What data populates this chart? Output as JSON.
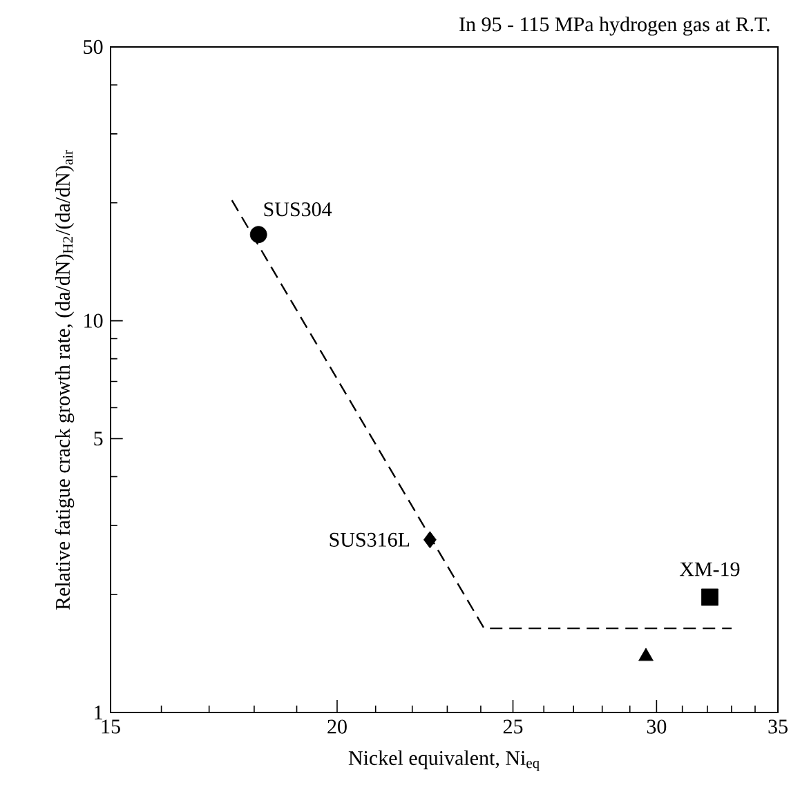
{
  "chart_data": {
    "type": "scatter",
    "title": "In 95 - 115 MPa hydrogen gas at R.T.",
    "xlabel": "Nickel equivalent, Ni$_{eq}$",
    "ylabel": "Relative fatigue crack growth rate, (da/dN)$_{H2}$/(da/dN)$_{air}$",
    "log": "xy",
    "xlim": [
      15,
      35
    ],
    "ylim": [
      1,
      50
    ],
    "xticks": [
      15,
      20,
      25,
      30,
      35
    ],
    "yticks": [
      1,
      5,
      10,
      50
    ],
    "series": [
      {
        "name": "SUS304",
        "color": "#000000",
        "marker": "circle",
        "x": [
          18.1
        ],
        "values": [
          16.6
        ]
      },
      {
        "name": "SUS316L",
        "color": "#000000",
        "marker": "diamond",
        "x": [
          22.5
        ],
        "values": [
          2.76
        ]
      },
      {
        "name": "XM-19",
        "color": "#000000",
        "marker": "square",
        "x": [
          32.1
        ],
        "values": [
          1.97
        ]
      },
      {
        "color": "#000000",
        "marker": "triangle",
        "x": [
          29.6
        ],
        "values": [
          1.39
        ]
      },
      {
        "type": "line",
        "color": "#000000",
        "line_style": "dashed",
        "marker": "none",
        "x": [
          17.5,
          24.1,
          33.0
        ],
        "values": [
          20.3,
          1.64,
          1.64
        ]
      }
    ]
  }
}
